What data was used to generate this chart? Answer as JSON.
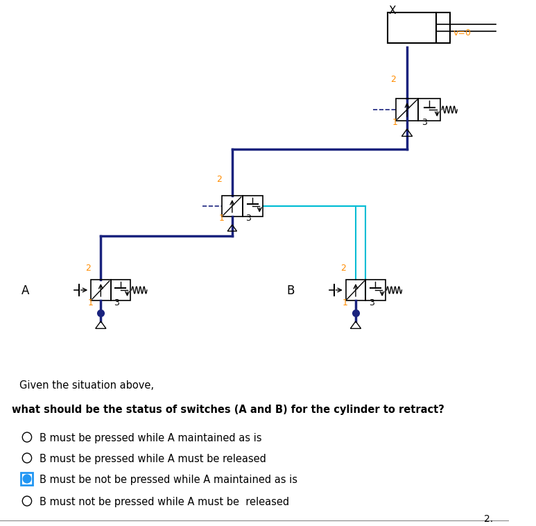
{
  "background_color": "#ffffff",
  "navy": "#1a237e",
  "cyan": "#00bcd4",
  "orange": "#FF8C00",
  "black": "#000000",
  "gray": "#888888",
  "blue_selected": "#2196F3",
  "question_text1": "Given the situation above,",
  "question_text2": "what should be the status of switches (A and B) for the cylinder to retract?",
  "option1": "B must be pressed while A maintained as is",
  "option2": "B must be pressed while A must be released",
  "option3": "B must be not be pressed while A maintained as is",
  "option4": "B must not be pressed while A must be  released",
  "selected_option": 3,
  "label_X": "X",
  "label_v0": "v=0"
}
